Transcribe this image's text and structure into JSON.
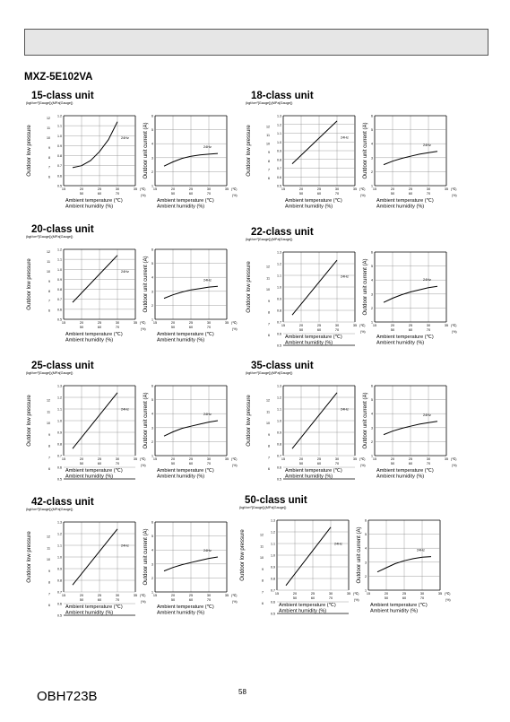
{
  "header": {
    "bar": ""
  },
  "model": "MXZ-5E102VA",
  "labels": {
    "pressure_units": "(kgf/cm²[Gauge])(MPa[Gauge])",
    "pressure_axis": "Outdoor low pressure",
    "current_axis": "Outdoor unit current (A)",
    "x_temp_label": "Ambient temperature (℃)",
    "x_hum_label": "Ambient humidity (%)",
    "temp_unit": "(℃)",
    "hum_unit": "(%)",
    "speed": "24Hz"
  },
  "axes": {
    "pressure_kgf_ticks": [
      6,
      7,
      8,
      9,
      10,
      11,
      12
    ],
    "pressure_mpa_ticks": [
      0.5,
      0.6,
      0.7,
      0.8,
      0.9,
      1.0,
      1.1,
      1.2
    ],
    "current_ticks": [
      1,
      2,
      3,
      4,
      5,
      6
    ],
    "temp_ticks": [
      15,
      20,
      25,
      30,
      35
    ],
    "hum_ticks": [
      50,
      60,
      70
    ]
  },
  "units": [
    {
      "title": "15-class unit",
      "mpa_max": 1.2
    },
    {
      "title": "18-class unit",
      "mpa_max": 1.3
    },
    {
      "title": "20-class unit",
      "mpa_max": 1.2
    },
    {
      "title": "22-class unit",
      "mpa_max": 1.3
    },
    {
      "title": "25-class unit",
      "mpa_max": 1.3
    },
    {
      "title": "35-class unit",
      "mpa_max": 1.3
    },
    {
      "title": "42-class unit",
      "mpa_max": 1.3
    },
    {
      "title": "50-class unit",
      "mpa_max": 1.3
    }
  ],
  "chart_data": [
    {
      "type": "line",
      "title": "15-class unit",
      "chart": "Outdoor low pressure",
      "x": [
        17.5,
        20,
        22.5,
        25,
        27.5,
        30
      ],
      "series": [
        {
          "name": "24Hz",
          "values": [
            0.68,
            0.7,
            0.75,
            0.84,
            0.96,
            1.14
          ]
        }
      ],
      "xlim": [
        15,
        35
      ],
      "ylim": [
        0.5,
        1.2
      ]
    },
    {
      "type": "line",
      "title": "15-class unit",
      "chart": "Outdoor unit current (A)",
      "x": [
        17.5,
        20,
        22.5,
        25,
        27.5,
        30,
        32.5
      ],
      "series": [
        {
          "name": "24Hz",
          "values": [
            2.4,
            2.7,
            2.95,
            3.1,
            3.2,
            3.25,
            3.3
          ]
        }
      ],
      "xlim": [
        15,
        35
      ],
      "ylim": [
        1,
        6
      ]
    },
    {
      "type": "line",
      "title": "18-class unit",
      "chart": "Outdoor low pressure",
      "x": [
        17.5,
        30
      ],
      "series": [
        {
          "name": "24Hz",
          "values": [
            0.75,
            1.24
          ]
        }
      ],
      "xlim": [
        15,
        35
      ],
      "ylim": [
        0.5,
        1.3
      ]
    },
    {
      "type": "line",
      "title": "18-class unit",
      "chart": "Outdoor unit current (A)",
      "x": [
        17.5,
        20,
        22.5,
        25,
        27.5,
        30,
        32.5
      ],
      "series": [
        {
          "name": "24Hz",
          "values": [
            2.5,
            2.75,
            2.95,
            3.1,
            3.25,
            3.35,
            3.45
          ]
        }
      ],
      "xlim": [
        15,
        35
      ],
      "ylim": [
        1,
        6
      ]
    },
    {
      "type": "line",
      "title": "20-class unit",
      "chart": "Outdoor low pressure",
      "x": [
        17.5,
        30
      ],
      "series": [
        {
          "name": "24Hz",
          "values": [
            0.67,
            1.14
          ]
        }
      ],
      "xlim": [
        15,
        35
      ],
      "ylim": [
        0.5,
        1.2
      ]
    },
    {
      "type": "line",
      "title": "20-class unit",
      "chart": "Outdoor unit current (A)",
      "x": [
        17.5,
        20,
        22.5,
        25,
        27.5,
        30,
        32.5
      ],
      "series": [
        {
          "name": "24Hz",
          "values": [
            2.5,
            2.75,
            2.95,
            3.1,
            3.2,
            3.3,
            3.35
          ]
        }
      ],
      "xlim": [
        15,
        35
      ],
      "ylim": [
        1,
        6
      ]
    },
    {
      "type": "line",
      "title": "22-class unit",
      "chart": "Outdoor low pressure",
      "x": [
        17.5,
        30
      ],
      "series": [
        {
          "name": "24Hz",
          "values": [
            0.76,
            1.23
          ]
        }
      ],
      "xlim": [
        15,
        35
      ],
      "ylim": [
        0.7,
        1.3
      ]
    },
    {
      "type": "line",
      "title": "22-class unit",
      "chart": "Outdoor unit current (A)",
      "x": [
        17.5,
        20,
        22.5,
        25,
        27.5,
        30,
        32.5
      ],
      "series": [
        {
          "name": "24Hz",
          "values": [
            2.4,
            2.7,
            2.95,
            3.15,
            3.3,
            3.45,
            3.55
          ]
        }
      ],
      "xlim": [
        15,
        35
      ],
      "ylim": [
        1,
        6
      ]
    },
    {
      "type": "line",
      "title": "25-class unit",
      "chart": "Outdoor low pressure",
      "x": [
        17.5,
        30
      ],
      "series": [
        {
          "name": "24Hz",
          "values": [
            0.76,
            1.24
          ]
        }
      ],
      "xlim": [
        15,
        35
      ],
      "ylim": [
        0.7,
        1.3
      ]
    },
    {
      "type": "line",
      "title": "25-class unit",
      "chart": "Outdoor unit current (A)",
      "x": [
        17.5,
        20,
        22.5,
        25,
        27.5,
        30,
        32.5
      ],
      "series": [
        {
          "name": "24Hz",
          "values": [
            2.4,
            2.7,
            2.95,
            3.1,
            3.25,
            3.4,
            3.5
          ]
        }
      ],
      "xlim": [
        15,
        35
      ],
      "ylim": [
        1,
        6
      ]
    },
    {
      "type": "line",
      "title": "35-class unit",
      "chart": "Outdoor low pressure",
      "x": [
        17.5,
        30
      ],
      "series": [
        {
          "name": "24Hz",
          "values": [
            0.76,
            1.24
          ]
        }
      ],
      "xlim": [
        15,
        35
      ],
      "ylim": [
        0.7,
        1.3
      ]
    },
    {
      "type": "line",
      "title": "35-class unit",
      "chart": "Outdoor unit current (A)",
      "x": [
        17.5,
        20,
        22.5,
        25,
        27.5,
        30,
        32.5
      ],
      "series": [
        {
          "name": "24Hz",
          "values": [
            2.5,
            2.75,
            2.95,
            3.1,
            3.25,
            3.35,
            3.45
          ]
        }
      ],
      "xlim": [
        15,
        35
      ],
      "ylim": [
        1,
        6
      ]
    },
    {
      "type": "line",
      "title": "42-class unit",
      "chart": "Outdoor low pressure",
      "x": [
        17.5,
        30
      ],
      "series": [
        {
          "name": "24Hz",
          "values": [
            0.76,
            1.24
          ]
        }
      ],
      "xlim": [
        15,
        35
      ],
      "ylim": [
        0.7,
        1.3
      ]
    },
    {
      "type": "line",
      "title": "42-class unit",
      "chart": "Outdoor unit current (A)",
      "x": [
        17.5,
        20,
        22.5,
        25,
        27.5,
        30,
        32.5
      ],
      "series": [
        {
          "name": "24Hz",
          "values": [
            2.5,
            2.75,
            2.95,
            3.1,
            3.25,
            3.4,
            3.5
          ]
        }
      ],
      "xlim": [
        15,
        35
      ],
      "ylim": [
        1,
        6
      ]
    },
    {
      "type": "line",
      "title": "50-class unit",
      "chart": "Outdoor low pressure",
      "x": [
        17.5,
        30
      ],
      "series": [
        {
          "name": "24Hz",
          "values": [
            0.74,
            1.24
          ]
        }
      ],
      "xlim": [
        15,
        35
      ],
      "ylim": [
        0.7,
        1.3
      ]
    },
    {
      "type": "line",
      "title": "50-class unit",
      "chart": "Outdoor unit current (A)",
      "x": [
        17.5,
        20,
        22.5,
        25,
        27.5,
        30,
        32.5
      ],
      "series": [
        {
          "name": "24Hz",
          "values": [
            2.3,
            2.6,
            2.9,
            3.1,
            3.25,
            3.35,
            3.4
          ]
        }
      ],
      "xlim": [
        15,
        35
      ],
      "ylim": [
        1,
        6
      ]
    }
  ],
  "footer": {
    "doc_code": "OBH723B",
    "page": "58"
  }
}
